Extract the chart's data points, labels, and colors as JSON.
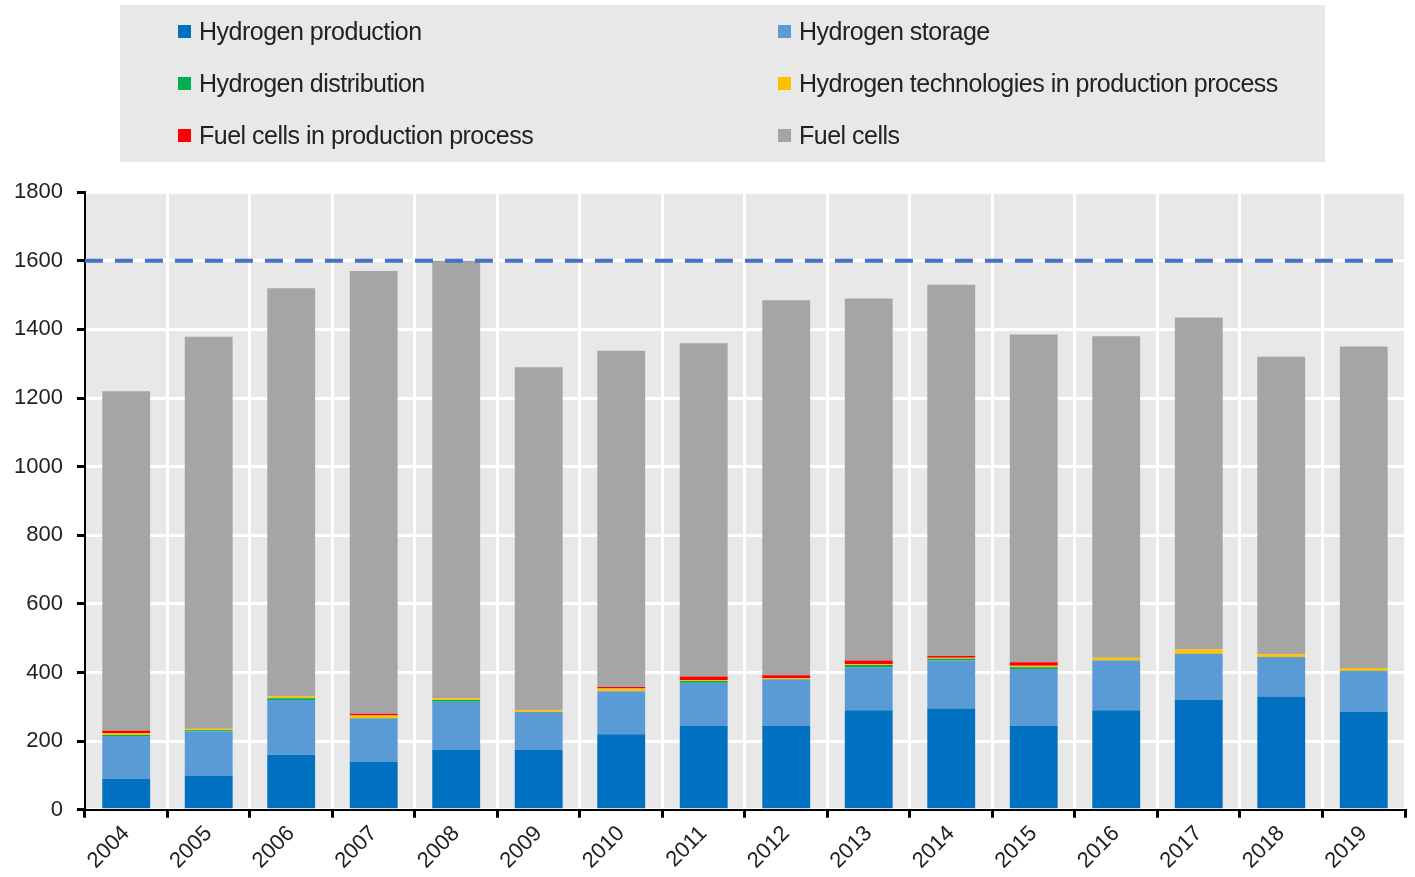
{
  "chart_data": {
    "type": "bar",
    "stacked": true,
    "legend": "top",
    "grid": true,
    "categories": [
      "2004",
      "2005",
      "2006",
      "2007",
      "2008",
      "2009",
      "2010",
      "2011",
      "2012",
      "2013",
      "2014",
      "2015",
      "2016",
      "2017",
      "2018",
      "2019"
    ],
    "ylim": [
      0,
      1800
    ],
    "yticks": [
      0,
      200,
      400,
      600,
      800,
      1000,
      1200,
      1400,
      1600,
      1800
    ],
    "series": [
      {
        "name": "Hydrogen production",
        "color": "#0070c0",
        "values": [
          90,
          100,
          160,
          140,
          175,
          175,
          220,
          245,
          245,
          290,
          295,
          245,
          290,
          320,
          330,
          285
        ]
      },
      {
        "name": "Hydrogen storage",
        "color": "#5b9bd5",
        "values": [
          125,
          128,
          160,
          125,
          140,
          110,
          125,
          125,
          135,
          125,
          140,
          165,
          145,
          135,
          115,
          120
        ]
      },
      {
        "name": "Hydrogen distribution",
        "color": "#00b050",
        "values": [
          3,
          4,
          5,
          2,
          5,
          0,
          null,
          5,
          0,
          7,
          5,
          5,
          0,
          0,
          0,
          0
        ]
      },
      {
        "name": "Hydrogen technologies in production process",
        "color": "#ffc000",
        "values": [
          5,
          4,
          5,
          8,
          5,
          5,
          8,
          3,
          4,
          3,
          3,
          5,
          8,
          12,
          8,
          8
        ]
      },
      {
        "name": "Fuel cells in production process",
        "color": "#ff0000",
        "values": [
          7,
          null,
          0,
          5,
          0,
          0,
          5,
          10,
          8,
          10,
          5,
          10,
          0,
          0,
          0,
          0
        ]
      },
      {
        "name": "Fuel cells",
        "color": "#a5a5a5",
        "values": [
          990,
          1143,
          1190,
          1290,
          1275,
          1000,
          980,
          972,
          1093,
          1055,
          1082,
          955,
          937,
          968,
          867,
          937
        ]
      }
    ],
    "ref_lines": [
      {
        "axis": "y",
        "value": 1600,
        "color": "#4472c4",
        "line_style": "dashed"
      }
    ]
  }
}
